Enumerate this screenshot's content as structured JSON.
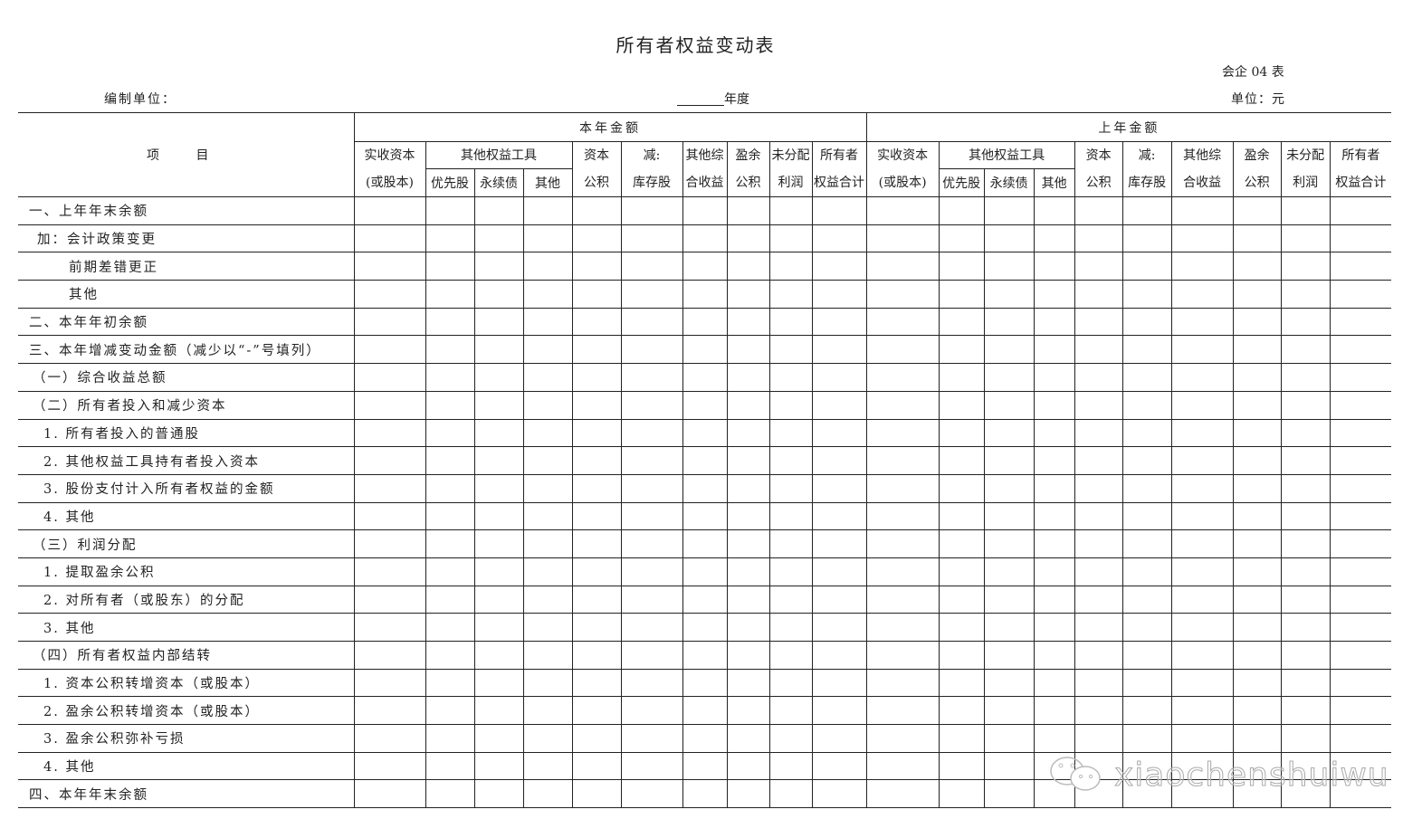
{
  "title": "所有者权益变动表",
  "form_no": "会企 04 表",
  "prepared_by_label": "编制单位：",
  "year_label": "年度",
  "unit_label": "单位：元",
  "header": {
    "item": "项 目",
    "current_year": "本年金额",
    "prior_year": "上年金额",
    "paid_in_capital": [
      "实收资本",
      "(或股本)"
    ],
    "other_equity_instruments": "其他权益工具",
    "preferred_stock": "优先股",
    "perpetual_bonds": "永续债",
    "other": "其他",
    "capital_reserve": [
      "资本",
      "公积"
    ],
    "treasury_stock": [
      "减:",
      "库存股"
    ],
    "oci": [
      "其他综",
      "合收益"
    ],
    "surplus_reserve": [
      "盈余",
      "公积"
    ],
    "retained_earnings": [
      "未分配",
      "利润"
    ],
    "total_equity": [
      "所有者",
      "权益合计"
    ]
  },
  "rows": [
    "一、上年年末余额",
    "加：会计政策变更",
    "前期差错更正",
    "其他",
    "二、本年年初余额",
    "三、本年增减变动金额（减少以“-”号填列）",
    "（一）综合收益总额",
    "（二）所有者投入和减少资本",
    "1. 所有者投入的普通股",
    "2. 其他权益工具持有者投入资本",
    "3. 股份支付计入所有者权益的金额",
    "4. 其他",
    "（三）利润分配",
    "1. 提取盈余公积",
    "2. 对所有者（或股东）的分配",
    "3. 其他",
    "（四）所有者权益内部结转",
    "1. 资本公积转增资本（或股本）",
    "2. 盈余公积转增资本（或股本）",
    "3. 盈余公积弥补亏损",
    "4. 其他",
    "四、本年年末余额"
  ],
  "watermark": "xiaochenshuiwu"
}
